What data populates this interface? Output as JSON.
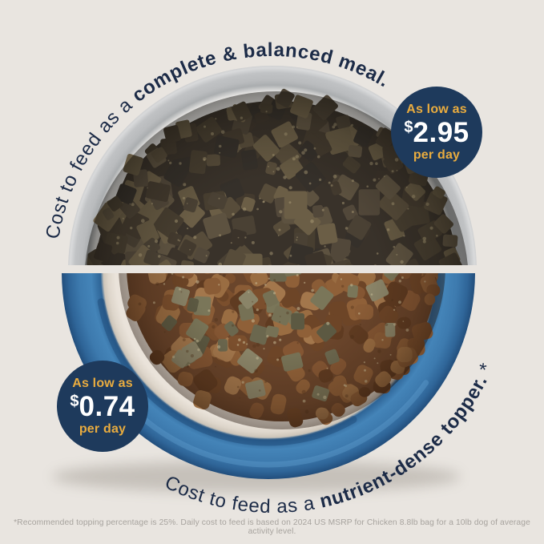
{
  "colors": {
    "background": "#e9e5e0",
    "caption_text": "#1c2b47",
    "badge_bg": "#1e3a5c",
    "badge_accent": "#e9ac3f",
    "badge_price": "#ffffff",
    "disclaimer_text": "#a7a39e",
    "bowl_gray": "#c0c2c4",
    "bowl_blue": "#3d7aae",
    "bowl_cream": "#eae3da"
  },
  "captions": {
    "top": {
      "regular": "Cost to feed as a ",
      "bold": "complete & balanced meal."
    },
    "bottom": {
      "regular": "Cost to feed as a ",
      "bold": "nutrient-dense topper.",
      "footnote_mark": " *"
    }
  },
  "badges": {
    "top": {
      "prefix": "As low as",
      "currency": "$",
      "amount": "2.95",
      "suffix": "per day"
    },
    "bottom": {
      "prefix": "As low as",
      "currency": "$",
      "amount": "0.74",
      "suffix": "per day"
    }
  },
  "scene": {
    "top_bowl_alt": "gray bowl filled with dark freeze-dried raw food pieces",
    "bottom_bowl_alt": "blue bowl of brown kibble mixed with freeze-dried topper pieces"
  },
  "disclaimer": "*Recommended topping percentage is 25%. Daily cost to feed is based on 2024 US MSRP for Chicken 8.8lb bag for a 10lb dog of average activity level."
}
